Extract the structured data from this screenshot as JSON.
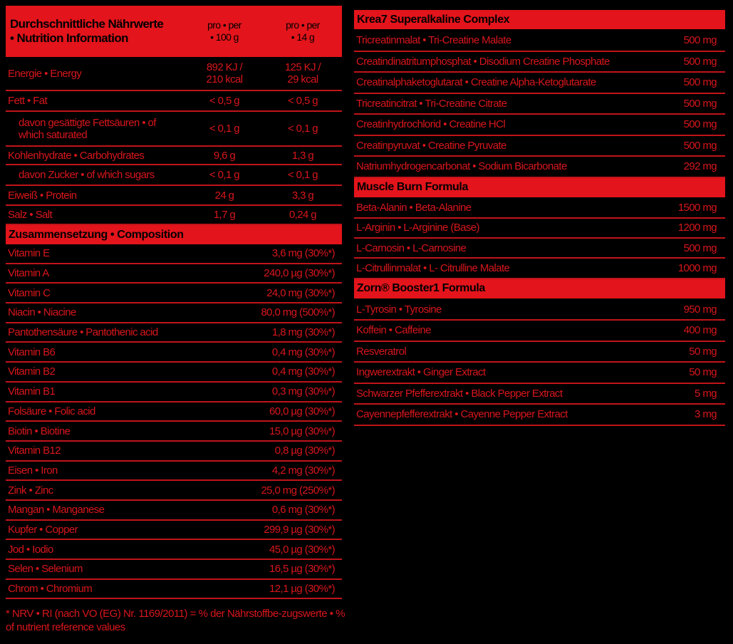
{
  "nutrition": {
    "title": "Durchschnittliche Nährwerte • Nutrition Information",
    "col1": "pro • per • 100 g",
    "col2": "pro • per • 14 g",
    "rows": [
      {
        "label": "Energie • Energy",
        "v1": "892 KJ / 210 kcal",
        "v2": "125 KJ / 29 kcal"
      },
      {
        "label": "Fett • Fat",
        "v1": "< 0,5 g",
        "v2": "< 0,5 g"
      },
      {
        "label": "davon gesättigte Fettsäuren • of which saturated",
        "v1": "< 0,1 g",
        "v2": "< 0,1 g",
        "indent": true
      },
      {
        "label": "Kohlenhydrate • Carbohydrates",
        "v1": "9,6 g",
        "v2": "1,3 g"
      },
      {
        "label": "davon Zucker • of which sugars",
        "v1": "< 0,1 g",
        "v2": "< 0,1 g",
        "indent": true
      },
      {
        "label": "Eiweiß • Protein",
        "v1": "24 g",
        "v2": "3,3 g"
      },
      {
        "label": "Salz • Salt",
        "v1": "1,7 g",
        "v2": "0,24 g"
      }
    ]
  },
  "composition": {
    "title": "Zusammensetzung • Composition",
    "rows": [
      {
        "label": "Vitamin E",
        "value": "3,6 mg (30%*)"
      },
      {
        "label": "Vitamin A",
        "value": "240,0 µg (30%*)"
      },
      {
        "label": "Vitamin C",
        "value": "24,0 mg (30%*)"
      },
      {
        "label": "Niacin • Niacine",
        "value": "80,0 mg (500%*)"
      },
      {
        "label": "Pantothensäure • Pantothenic acid",
        "value": "1,8 mg (30%*)"
      },
      {
        "label": "Vitamin B6",
        "value": "0,4 mg (30%*)"
      },
      {
        "label": "Vitamin B2",
        "value": "0,4 mg (30%*)"
      },
      {
        "label": "Vitamin B1",
        "value": "0,3 mg (30%*)"
      },
      {
        "label": "Folsäure • Folic acid",
        "value": "60,0 µg (30%*)"
      },
      {
        "label": "Biotin • Biotine",
        "value": "15,0 µg (30%*)"
      },
      {
        "label": "Vitamin B12",
        "value": "0,8 µg (30%*)"
      },
      {
        "label": "Eisen • Iron",
        "value": "4,2 mg (30%*)"
      },
      {
        "label": "Zink • Zinc",
        "value": "25,0 mg (250%*)"
      },
      {
        "label": "Mangan • Manganese",
        "value": "0,6 mg (30%*)"
      },
      {
        "label": "Kupfer • Copper",
        "value": "299,9 µg (30%*)"
      },
      {
        "label": "Jod • Iodio",
        "value": "45,0 µg (30%*)"
      },
      {
        "label": "Selen • Selenium",
        "value": "16,5 µg (30%*)"
      },
      {
        "label": "Chrom • Chromium",
        "value": "12,1 µg (30%*)"
      }
    ]
  },
  "footnote": "*  NRV • RI (nach VO (EG) Nr. 1169/2011) = % der Nährstoffbe-zugswerte • % of nutrient reference values",
  "sections": [
    {
      "title": "Krea7 Superalkaline Complex",
      "rows": [
        {
          "label": "Tricreatinmalat • Tri-Creatine Malate",
          "value": "500 mg"
        },
        {
          "label": "Creatindinatritumphosphat • Disodium Creatine Phosphate",
          "value": "500 mg"
        },
        {
          "label": "Creatinalphaketoglutarat • Creatine Alpha-Ketoglutarate",
          "value": "500 mg"
        },
        {
          "label": "Tricreatincitrat • Tri-Creatine Citrate",
          "value": "500 mg"
        },
        {
          "label": "Creatinhydrochlorid • Creatine HCl",
          "value": "500 mg"
        },
        {
          "label": "Creatinpyruvat • Creatine Pyruvate",
          "value": "500 mg"
        },
        {
          "label": "Natriumhydrogencarbonat • Sodium Bicarbonate",
          "value": "292 mg"
        }
      ]
    },
    {
      "title": "Muscle Burn Formula",
      "rows": [
        {
          "label": "Beta-Alanin • Beta-Alanine",
          "value": "1500 mg"
        },
        {
          "label": "L-Arginin • L-Arginine (Base)",
          "value": "1200 mg"
        },
        {
          "label": "L-Carnosin • L-Carnosine",
          "value": "500 mg"
        },
        {
          "label": "L-Citrullinmalat • L- Citrulline Malate",
          "value": "1000 mg"
        }
      ]
    },
    {
      "title": "Zorn® Booster1 Formula",
      "rows": [
        {
          "label": "L-Tyrosin • Tyrosine",
          "value": "950 mg"
        },
        {
          "label": "Koffein • Caffeine",
          "value": "400 mg"
        },
        {
          "label": "Resveratrol",
          "value": "50 mg"
        },
        {
          "label": "Ingwerextrakt  • Ginger Extract",
          "value": "50 mg"
        },
        {
          "label": "Schwarzer Pfefferextrakt • Black Pepper Extract",
          "value": "5 mg"
        },
        {
          "label": "Cayennepfefferextrakt • Cayenne Pepper Extract",
          "value": "3 mg"
        }
      ]
    }
  ],
  "colors": {
    "red": "#e3141b",
    "text": "#d7161c",
    "background": "#000000"
  }
}
